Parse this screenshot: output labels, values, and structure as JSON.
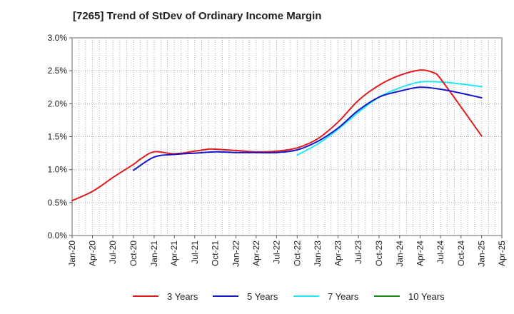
{
  "chart_data": {
    "type": "line",
    "title": "[7265]  Trend of StDev of Ordinary Income Margin",
    "xlabel": "",
    "ylabel": "",
    "x_tick_labels": [
      "Jan-20",
      "Apr-20",
      "Jul-20",
      "Oct-20",
      "Jan-21",
      "Apr-21",
      "Jul-21",
      "Oct-21",
      "Jan-22",
      "Apr-22",
      "Jul-22",
      "Oct-22",
      "Jan-23",
      "Apr-23",
      "Jul-23",
      "Oct-23",
      "Jan-24",
      "Apr-24",
      "Jul-24",
      "Oct-24",
      "Jan-25",
      "Apr-25"
    ],
    "y_tick_labels": [
      "0.0%",
      "0.5%",
      "1.0%",
      "1.5%",
      "2.0%",
      "2.5%",
      "3.0%"
    ],
    "ylim": [
      0,
      3.0
    ],
    "grid": true,
    "legend_position": "bottom",
    "series": [
      {
        "name": "3 Years",
        "color": "#e31a1c",
        "x": [
          "2020-01",
          "2020-04",
          "2020-07",
          "2020-10",
          "2020-11",
          "2021-01",
          "2021-04",
          "2021-07",
          "2021-09",
          "2021-10",
          "2022-01",
          "2022-04",
          "2022-07",
          "2022-10",
          "2023-01",
          "2023-04",
          "2023-07",
          "2023-10",
          "2024-01",
          "2024-04",
          "2024-06",
          "2024-07",
          "2024-10",
          "2025-01"
        ],
        "values": [
          0.53,
          0.67,
          0.88,
          1.08,
          1.16,
          1.27,
          1.24,
          1.28,
          1.31,
          1.31,
          1.29,
          1.27,
          1.28,
          1.33,
          1.47,
          1.72,
          2.05,
          2.28,
          2.43,
          2.51,
          2.47,
          2.38,
          1.95,
          1.51
        ]
      },
      {
        "name": "5 Years",
        "color": "#1515cc",
        "x": [
          "2020-10",
          "2021-01",
          "2021-04",
          "2021-07",
          "2021-10",
          "2022-01",
          "2022-04",
          "2022-07",
          "2022-10",
          "2023-01",
          "2023-04",
          "2023-07",
          "2023-10",
          "2024-01",
          "2024-04",
          "2024-07",
          "2024-10",
          "2025-01"
        ],
        "values": [
          0.99,
          1.19,
          1.23,
          1.25,
          1.27,
          1.26,
          1.26,
          1.26,
          1.3,
          1.43,
          1.63,
          1.9,
          2.1,
          2.19,
          2.25,
          2.22,
          2.16,
          2.09
        ]
      },
      {
        "name": "7 Years",
        "color": "#22e5f5",
        "x": [
          "2022-10",
          "2023-01",
          "2023-04",
          "2023-07",
          "2023-10",
          "2024-01",
          "2024-04",
          "2024-07",
          "2024-10",
          "2025-01"
        ],
        "values": [
          1.22,
          1.39,
          1.61,
          1.87,
          2.1,
          2.24,
          2.33,
          2.33,
          2.3,
          2.26
        ]
      },
      {
        "name": "10 Years",
        "color": "#1a8a1a",
        "x": [],
        "values": []
      }
    ]
  }
}
